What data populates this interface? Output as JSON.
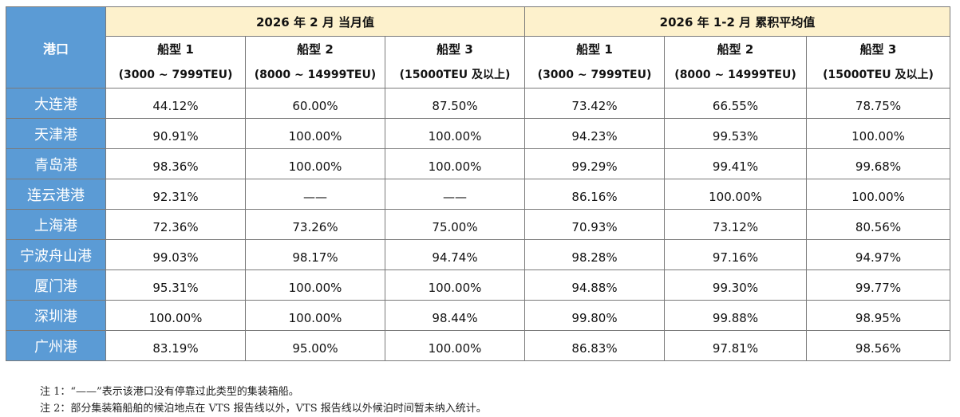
{
  "header": {
    "port_col": "港口",
    "group_month": "2026 年 2 月 当月值",
    "group_cumulative": "2026 年 1-2 月 累积平均值",
    "types": [
      {
        "name": "船型 1",
        "range": "(3000 ~ 7999TEU)"
      },
      {
        "name": "船型 2",
        "range": "(8000 ~ 14999TEU)"
      },
      {
        "name": "船型 3",
        "range": "(15000TEU 及以上)"
      }
    ]
  },
  "rows": [
    {
      "port": "大连港",
      "values": [
        "44.12%",
        "60.00%",
        "87.50%",
        "73.42%",
        "66.55%",
        "78.75%"
      ]
    },
    {
      "port": "天津港",
      "values": [
        "90.91%",
        "100.00%",
        "100.00%",
        "94.23%",
        "99.53%",
        "100.00%"
      ]
    },
    {
      "port": "青岛港",
      "values": [
        "98.36%",
        "100.00%",
        "100.00%",
        "99.29%",
        "99.41%",
        "99.68%"
      ]
    },
    {
      "port": "连云港港",
      "values": [
        "92.31%",
        "——",
        "——",
        "86.16%",
        "100.00%",
        "100.00%"
      ]
    },
    {
      "port": "上海港",
      "values": [
        "72.36%",
        "73.26%",
        "75.00%",
        "70.93%",
        "73.12%",
        "80.56%"
      ]
    },
    {
      "port": "宁波舟山港",
      "values": [
        "99.03%",
        "98.17%",
        "94.74%",
        "98.28%",
        "97.16%",
        "94.97%"
      ]
    },
    {
      "port": "厦门港",
      "values": [
        "95.31%",
        "100.00%",
        "100.00%",
        "94.88%",
        "99.30%",
        "99.77%"
      ]
    },
    {
      "port": "深圳港",
      "values": [
        "100.00%",
        "100.00%",
        "98.44%",
        "99.80%",
        "99.88%",
        "98.95%"
      ]
    },
    {
      "port": "广州港",
      "values": [
        "83.19%",
        "95.00%",
        "100.00%",
        "86.83%",
        "97.81%",
        "98.56%"
      ]
    }
  ],
  "notes": [
    "注 1：“——”表示该港口没有停靠过此类型的集装箱船。",
    "注 2：部分集装箱船舶的候泊地点在 VTS 报告线以外，VTS 报告线以外候泊时间暂未纳入统计。"
  ],
  "colors": {
    "port_bg": "#5b9bd5",
    "group_header_bg": "#fdf1cc",
    "border": "#7a7a7a"
  }
}
